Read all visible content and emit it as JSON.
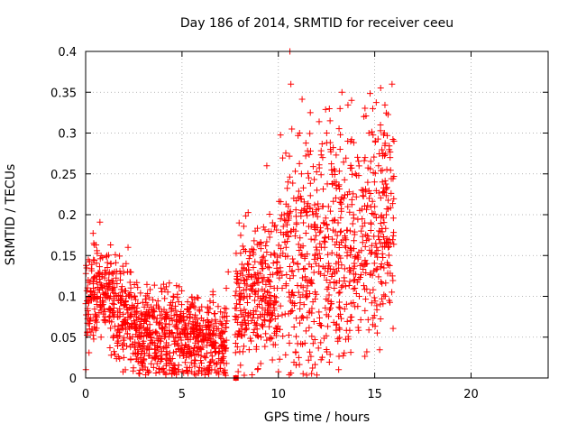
{
  "chart_data": {
    "type": "scatter",
    "title": "Day 186 of 2014, SRMTID for receiver ceeu",
    "xlabel": "GPS time / hours",
    "ylabel": "SRMTID / TECUs",
    "xlim": [
      0,
      24
    ],
    "ylim": [
      0,
      0.4
    ],
    "xticks": [
      "0",
      "5",
      "10",
      "15",
      "20"
    ],
    "yticks": [
      "0",
      "0.05",
      "0.1",
      "0.15",
      "0.2",
      "0.25",
      "0.3",
      "0.35",
      "0.4"
    ],
    "grid": true,
    "marker": "+",
    "color": "#ff0000",
    "series": [
      {
        "name": "SRMTID",
        "points": [
          [
            0.1,
            0.085
          ],
          [
            0.2,
            0.06
          ],
          [
            0.3,
            0.095
          ],
          [
            0.4,
            0.11
          ],
          [
            0.5,
            0.07
          ],
          [
            0.6,
            0.1
          ],
          [
            0.7,
            0.08
          ],
          [
            0.8,
            0.05
          ],
          [
            0.9,
            0.09
          ],
          [
            1.0,
            0.075
          ],
          [
            1.1,
            0.15
          ],
          [
            1.2,
            0.12
          ],
          [
            1.3,
            0.14
          ],
          [
            1.4,
            0.11
          ],
          [
            1.5,
            0.13
          ],
          [
            1.6,
            0.1
          ],
          [
            1.7,
            0.095
          ],
          [
            1.8,
            0.12
          ],
          [
            1.9,
            0.105
          ],
          [
            2.0,
            0.09
          ],
          [
            2.1,
            0.14
          ],
          [
            2.2,
            0.16
          ],
          [
            2.3,
            0.13
          ],
          [
            2.4,
            0.085
          ],
          [
            2.5,
            0.07
          ],
          [
            2.6,
            0.06
          ],
          [
            2.7,
            0.05
          ],
          [
            2.8,
            0.065
          ],
          [
            2.9,
            0.055
          ],
          [
            3.0,
            0.045
          ],
          [
            3.1,
            0.07
          ],
          [
            3.2,
            0.06
          ],
          [
            3.3,
            0.035
          ],
          [
            3.4,
            0.05
          ],
          [
            3.5,
            0.075
          ],
          [
            3.6,
            0.04
          ],
          [
            3.7,
            0.055
          ],
          [
            3.8,
            0.065
          ],
          [
            3.9,
            0.045
          ],
          [
            4.0,
            0.06
          ],
          [
            4.1,
            0.05
          ],
          [
            4.2,
            0.08
          ],
          [
            4.3,
            0.04
          ],
          [
            4.4,
            0.055
          ],
          [
            4.5,
            0.07
          ],
          [
            4.6,
            0.045
          ],
          [
            4.7,
            0.065
          ],
          [
            4.8,
            0.035
          ],
          [
            4.9,
            0.05
          ],
          [
            5.0,
            0.06
          ],
          [
            5.1,
            0.07
          ],
          [
            5.2,
            0.04
          ],
          [
            5.3,
            0.055
          ],
          [
            5.4,
            0.075
          ],
          [
            5.5,
            0.03
          ],
          [
            5.6,
            0.05
          ],
          [
            5.7,
            0.065
          ],
          [
            5.8,
            0.045
          ],
          [
            5.9,
            0.06
          ],
          [
            6.0,
            0.035
          ],
          [
            6.1,
            0.07
          ],
          [
            6.2,
            0.05
          ],
          [
            6.3,
            0.04
          ],
          [
            6.4,
            0.055
          ],
          [
            6.5,
            0.02
          ],
          [
            6.6,
            0.045
          ],
          [
            6.7,
            0.01
          ],
          [
            6.8,
            0.06
          ],
          [
            6.9,
            0.03
          ],
          [
            7.0,
            0.05
          ],
          [
            7.1,
            0.075
          ],
          [
            7.2,
            0.04
          ],
          [
            7.3,
            0.11
          ],
          [
            7.4,
            0.13
          ],
          [
            7.8,
            0.0
          ],
          [
            8.0,
            0.09
          ],
          [
            8.1,
            0.06
          ],
          [
            8.2,
            0.12
          ],
          [
            8.3,
            0.08
          ],
          [
            8.4,
            0.14
          ],
          [
            8.5,
            0.1
          ],
          [
            8.6,
            0.07
          ],
          [
            8.7,
            0.115
          ],
          [
            8.8,
            0.18
          ],
          [
            8.9,
            0.06
          ],
          [
            9.0,
            0.09
          ],
          [
            9.1,
            0.05
          ],
          [
            9.2,
            0.1
          ],
          [
            9.3,
            0.07
          ],
          [
            9.4,
            0.26
          ],
          [
            9.5,
            0.12
          ],
          [
            9.6,
            0.08
          ],
          [
            9.7,
            0.19
          ],
          [
            9.8,
            0.1
          ],
          [
            9.9,
            0.06
          ],
          [
            10.0,
            0.13
          ],
          [
            10.1,
            0.15
          ],
          [
            10.2,
            0.11
          ],
          [
            10.3,
            0.2
          ],
          [
            10.4,
            0.16
          ],
          [
            10.5,
            0.24
          ],
          [
            10.6,
            0.4
          ],
          [
            10.65,
            0.36
          ],
          [
            10.7,
            0.305
          ],
          [
            10.8,
            0.22
          ],
          [
            10.9,
            0.18
          ],
          [
            11.0,
            0.14
          ],
          [
            11.1,
            0.3
          ],
          [
            11.2,
            0.25
          ],
          [
            11.3,
            0.19
          ],
          [
            11.4,
            0.12
          ],
          [
            11.5,
            0.1
          ],
          [
            11.6,
            0.08
          ],
          [
            11.7,
            0.17
          ],
          [
            11.8,
            0.2
          ],
          [
            11.9,
            0.15
          ],
          [
            12.0,
            0.23
          ],
          [
            12.1,
            0.13
          ],
          [
            12.2,
            0.18
          ],
          [
            12.3,
            0.27
          ],
          [
            12.4,
            0.16
          ],
          [
            12.5,
            0.12
          ],
          [
            12.6,
            0.21
          ],
          [
            12.7,
            0.28
          ],
          [
            12.8,
            0.17
          ],
          [
            12.9,
            0.24
          ],
          [
            13.0,
            0.14
          ],
          [
            13.1,
            0.19
          ],
          [
            13.2,
            0.33
          ],
          [
            13.3,
            0.35
          ],
          [
            13.4,
            0.22
          ],
          [
            13.5,
            0.16
          ],
          [
            13.6,
            0.29
          ],
          [
            13.7,
            0.13
          ],
          [
            13.8,
            0.34
          ],
          [
            13.9,
            0.2
          ],
          [
            14.0,
            0.25
          ],
          [
            14.1,
            0.15
          ],
          [
            14.2,
            0.1
          ],
          [
            14.3,
            0.18
          ],
          [
            14.4,
            0.23
          ],
          [
            14.5,
            0.27
          ],
          [
            14.6,
            0.14
          ],
          [
            14.7,
            0.3
          ],
          [
            14.8,
            0.19
          ],
          [
            14.9,
            0.33
          ],
          [
            15.0,
            0.21
          ],
          [
            15.1,
            0.16
          ],
          [
            15.2,
            0.26
          ],
          [
            15.3,
            0.31
          ],
          [
            15.4,
            0.24
          ],
          [
            15.5,
            0.3
          ],
          [
            15.6,
            0.2
          ],
          [
            15.7,
            0.16
          ],
          [
            15.8,
            0.27
          ],
          [
            15.9,
            0.36
          ],
          [
            16.0,
            0.29
          ]
        ]
      }
    ]
  }
}
